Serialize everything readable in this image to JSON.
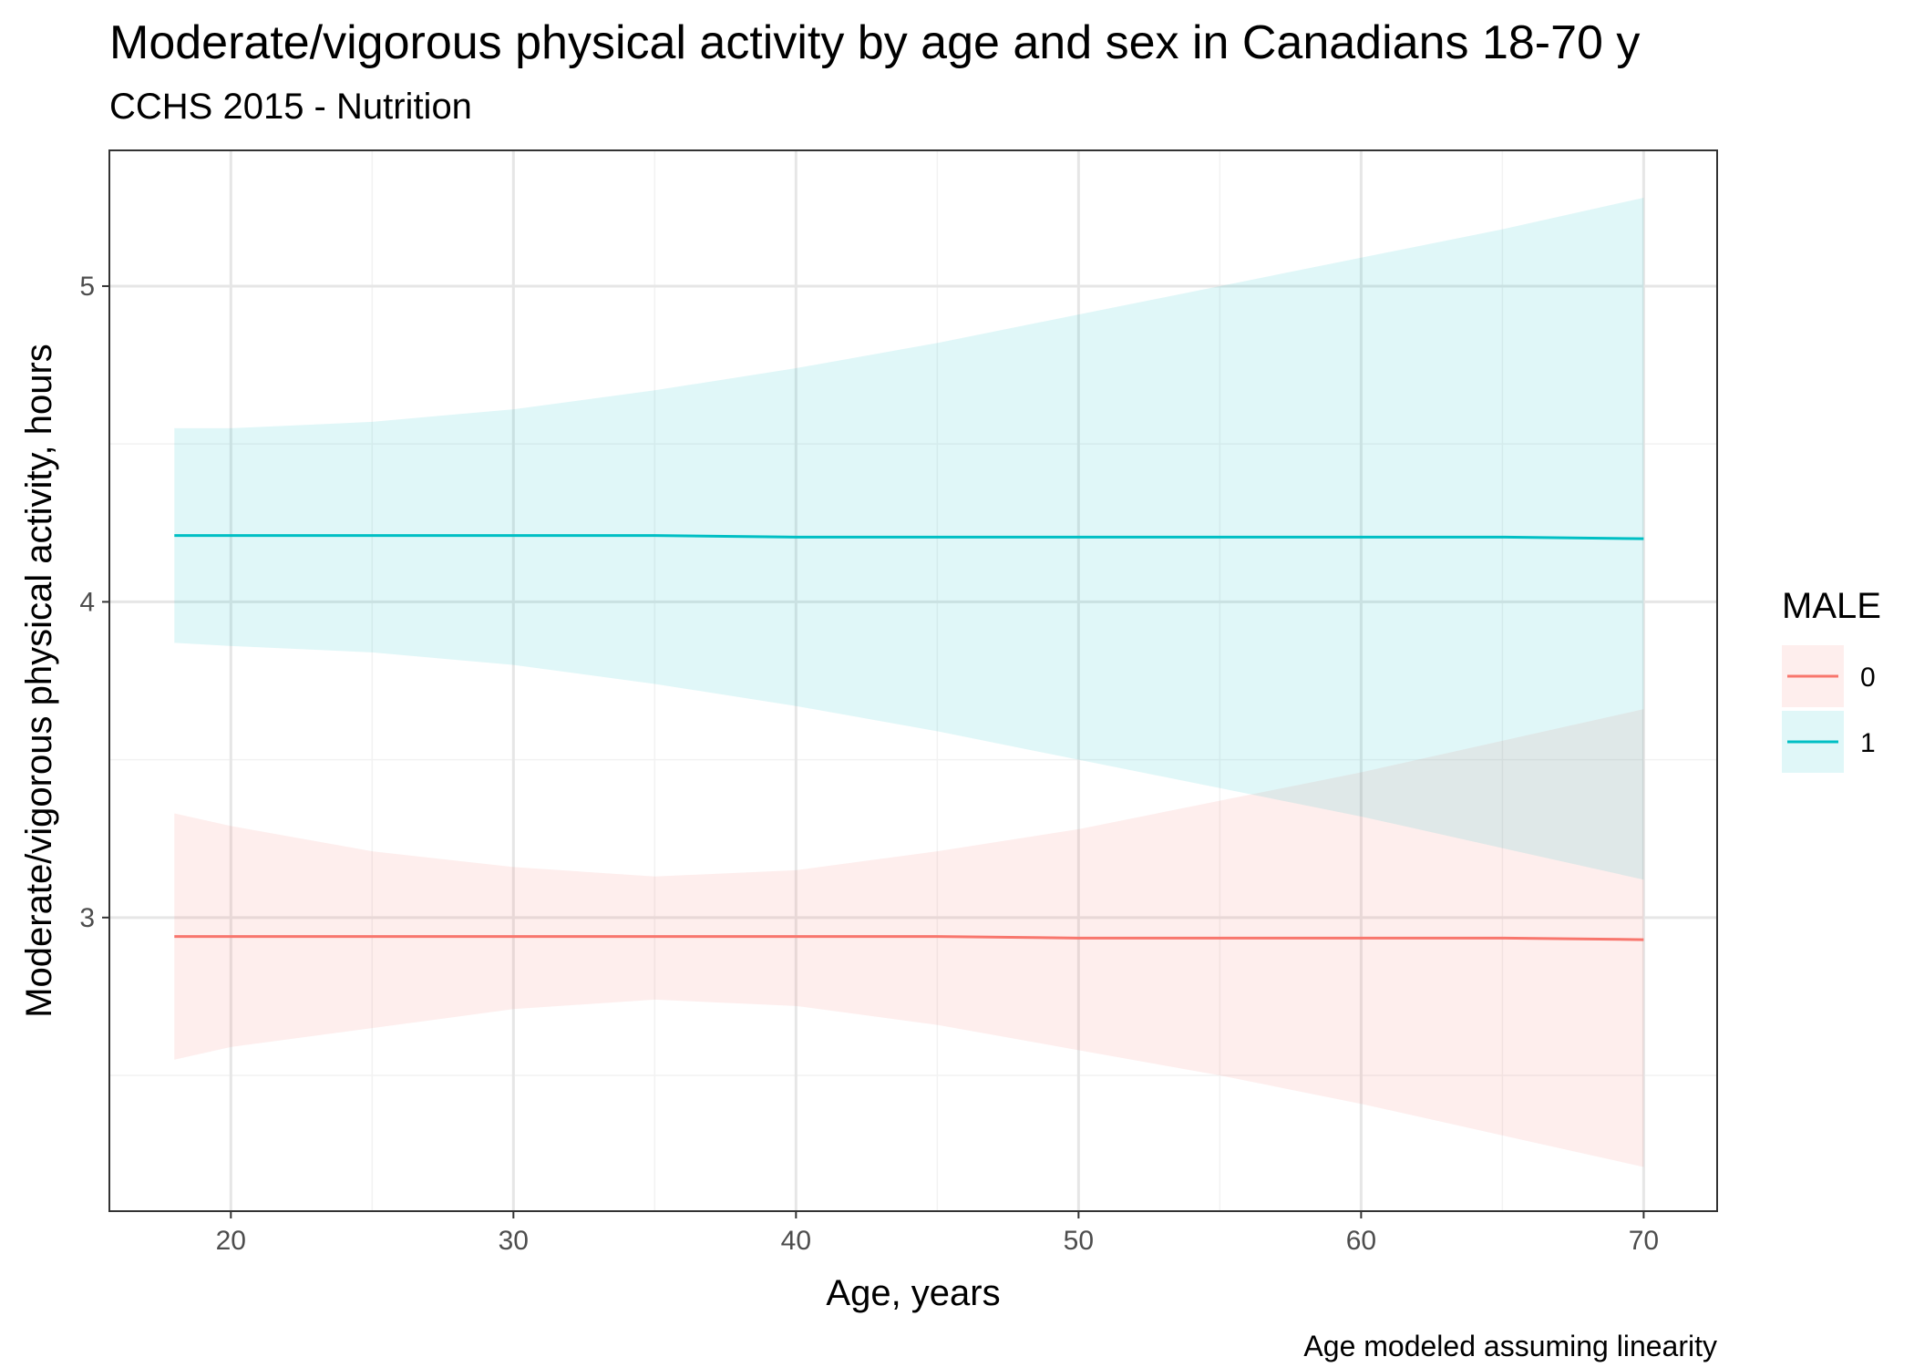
{
  "chart_data": {
    "type": "line",
    "title": "Moderate/vigorous physical activity by age and sex in Canadians 18-70 y",
    "subtitle": "CCHS 2015 - Nutrition",
    "xlabel": "Age, years",
    "ylabel": "Moderate/vigorous physical activity, hours",
    "caption": "Age modeled assuming linearity",
    "xlim": [
      15.7,
      72.6
    ],
    "ylim": [
      2.07,
      5.43
    ],
    "xticks": [
      20,
      30,
      40,
      50,
      60,
      70
    ],
    "yticks": [
      3,
      4,
      5
    ],
    "grid": true,
    "legend": {
      "title": "MALE",
      "position": "right"
    },
    "series": [
      {
        "name": "0",
        "color": "#F8766D",
        "x": [
          18,
          20,
          25,
          30,
          35,
          40,
          45,
          50,
          55,
          60,
          65,
          70
        ],
        "y": [
          2.94,
          2.94,
          2.94,
          2.94,
          2.94,
          2.94,
          2.94,
          2.935,
          2.935,
          2.935,
          2.935,
          2.93
        ],
        "lower": [
          2.55,
          2.59,
          2.65,
          2.71,
          2.74,
          2.72,
          2.66,
          2.58,
          2.5,
          2.41,
          2.31,
          2.21
        ],
        "upper": [
          3.33,
          3.29,
          3.21,
          3.16,
          3.13,
          3.15,
          3.21,
          3.28,
          3.37,
          3.46,
          3.56,
          3.66
        ]
      },
      {
        "name": "1",
        "color": "#00BFC4",
        "x": [
          18,
          20,
          25,
          30,
          35,
          40,
          45,
          50,
          55,
          60,
          65,
          70
        ],
        "y": [
          4.21,
          4.21,
          4.21,
          4.21,
          4.21,
          4.205,
          4.205,
          4.205,
          4.205,
          4.205,
          4.205,
          4.2
        ],
        "lower": [
          3.87,
          3.86,
          3.84,
          3.8,
          3.74,
          3.67,
          3.59,
          3.5,
          3.41,
          3.32,
          3.22,
          3.12
        ],
        "upper": [
          4.55,
          4.55,
          4.57,
          4.61,
          4.67,
          4.74,
          4.82,
          4.91,
          5.0,
          5.09,
          5.18,
          5.28
        ]
      }
    ]
  }
}
